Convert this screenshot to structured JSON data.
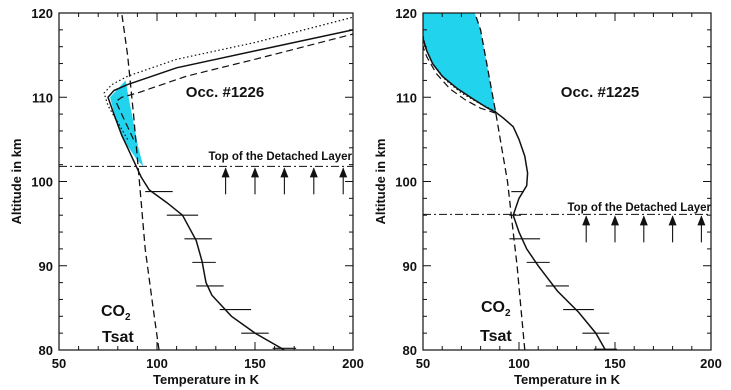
{
  "chart_data": [
    {
      "type": "line",
      "title": "",
      "xlabel": "Temperature in K",
      "ylabel": "Altitude in km",
      "xlim": [
        50,
        200
      ],
      "ylim": [
        80,
        120
      ],
      "xticks": [
        50,
        100,
        150,
        200
      ],
      "yticks": [
        80,
        90,
        100,
        110,
        120
      ],
      "grid": false,
      "annotations": {
        "occultation": "Occ. #1226",
        "detached_layer": "Top of the Detached Layer",
        "co2": "CO",
        "co2_sub": "2",
        "tsat": "Tsat"
      },
      "detached_layer_altitude": 101.8,
      "arrow_temperatures": [
        135,
        150,
        165,
        180,
        195
      ],
      "profile": {
        "style": "solid",
        "T": [
          165,
          150,
          138,
          128,
          125,
          123,
          120,
          113,
          105,
          96,
          92,
          88,
          82,
          78,
          75,
          78,
          85,
          110,
          150,
          200
        ],
        "z": [
          80,
          82,
          84,
          86.5,
          88,
          90.5,
          93,
          96,
          97.5,
          99,
          100.5,
          102.5,
          105.5,
          108,
          110,
          110.8,
          111.5,
          113.5,
          115.5,
          118
        ]
      },
      "profile_upper": {
        "style": "dotted",
        "T": [
          85,
          80,
          75,
          73,
          77,
          85,
          110,
          150,
          200
        ],
        "z": [
          105,
          107,
          109,
          110.5,
          111.5,
          112.5,
          114.5,
          116.5,
          119.5
        ]
      },
      "profile_lower": {
        "style": "dashed",
        "T": [
          88,
          84,
          80,
          79,
          82,
          90,
          115,
          150,
          200
        ],
        "z": [
          105,
          107,
          109,
          109.5,
          110,
          110.5,
          112.5,
          114.5,
          117.5
        ]
      },
      "tsat": {
        "style": "dashed",
        "T": [
          101,
          98,
          94,
          91,
          88,
          85,
          82
        ],
        "z": [
          80,
          85,
          92,
          100,
          108,
          115,
          120
        ]
      },
      "error_bars": [
        {
          "T": 165,
          "z": 80.2,
          "err": 6
        },
        {
          "T": 150,
          "z": 82,
          "err": 7
        },
        {
          "T": 140,
          "z": 84.8,
          "err": 8
        },
        {
          "T": 127,
          "z": 87.6,
          "err": 7
        },
        {
          "T": 124,
          "z": 90.4,
          "err": 6
        },
        {
          "T": 121,
          "z": 93.2,
          "err": 7
        },
        {
          "T": 113,
          "z": 96,
          "err": 8
        },
        {
          "T": 101,
          "z": 98.8,
          "err": 7
        }
      ],
      "supersaturated_region": {
        "color": "#22d3ee",
        "T": [
          93,
          90.5,
          88,
          85.5,
          84,
          76,
          80,
          85,
          90,
          93
        ],
        "z": [
          101.8,
          104,
          107,
          110,
          112,
          110,
          106.5,
          104.2,
          102.5,
          101.8
        ]
      }
    },
    {
      "type": "line",
      "title": "",
      "xlabel": "Temperature in K",
      "ylabel": "Altitude in km",
      "xlim": [
        50,
        200
      ],
      "ylim": [
        80,
        120
      ],
      "xticks": [
        50,
        100,
        150,
        200
      ],
      "yticks": [
        80,
        90,
        100,
        110,
        120
      ],
      "grid": false,
      "annotations": {
        "occultation": "Occ. #1225",
        "detached_layer": "Top of the Detached Layer",
        "co2": "CO",
        "co2_sub": "2",
        "tsat": "Tsat"
      },
      "detached_layer_altitude": 96.1,
      "arrow_temperatures": [
        135,
        150,
        165,
        180,
        195
      ],
      "profile": {
        "style": "solid",
        "T": [
          145,
          140,
          131,
          120,
          110,
          104,
          100,
          97,
          100,
          104,
          104.5,
          103,
          100,
          97,
          92,
          88,
          83,
          76,
          68,
          60,
          55,
          52,
          50
        ],
        "z": [
          80,
          82,
          84.5,
          87,
          90,
          92,
          94,
          96,
          98,
          99.5,
          101,
          103,
          105,
          106.5,
          107.5,
          108.2,
          108.8,
          109.8,
          111,
          112.5,
          114,
          115.5,
          117
        ]
      },
      "profile_upper": {
        "style": "dotted",
        "T": [
          88,
          80,
          70,
          62,
          55,
          51,
          50
        ],
        "z": [
          108.3,
          109.2,
          110.5,
          112,
          114,
          116,
          117.5
        ]
      },
      "profile_lower": {
        "style": "dashed",
        "T": [
          88,
          80,
          72,
          64,
          57,
          52,
          50
        ],
        "z": [
          108.1,
          108.7,
          109.7,
          111,
          112.8,
          114.8,
          116
        ]
      },
      "tsat": {
        "style": "dashed",
        "T": [
          103,
          101,
          99,
          97,
          96,
          94,
          91,
          88,
          84,
          80,
          77
        ],
        "z": [
          80,
          85,
          90,
          94,
          96,
          100,
          104,
          108,
          113,
          118,
          120
        ]
      },
      "error_bars": [
        {
          "T": 145,
          "z": 80.1,
          "err": 6
        },
        {
          "T": 140,
          "z": 82,
          "err": 7
        },
        {
          "T": 131,
          "z": 84.8,
          "err": 8
        },
        {
          "T": 120,
          "z": 87.6,
          "err": 6
        },
        {
          "T": 110,
          "z": 90.4,
          "err": 6
        },
        {
          "T": 103,
          "z": 93.2,
          "err": 8
        },
        {
          "T": 98,
          "z": 96,
          "err": 3
        },
        {
          "T": 99,
          "z": 98.8,
          "err": 3
        }
      ],
      "supersaturated_region": {
        "color": "#22d3ee",
        "T": [
          88,
          84,
          80,
          77,
          50,
          50,
          52,
          55,
          60,
          68,
          76,
          83,
          88
        ],
        "z": [
          108.2,
          113,
          118,
          120,
          120,
          117,
          115.5,
          114,
          112.5,
          111,
          109.8,
          108.8,
          108.2
        ]
      }
    }
  ]
}
